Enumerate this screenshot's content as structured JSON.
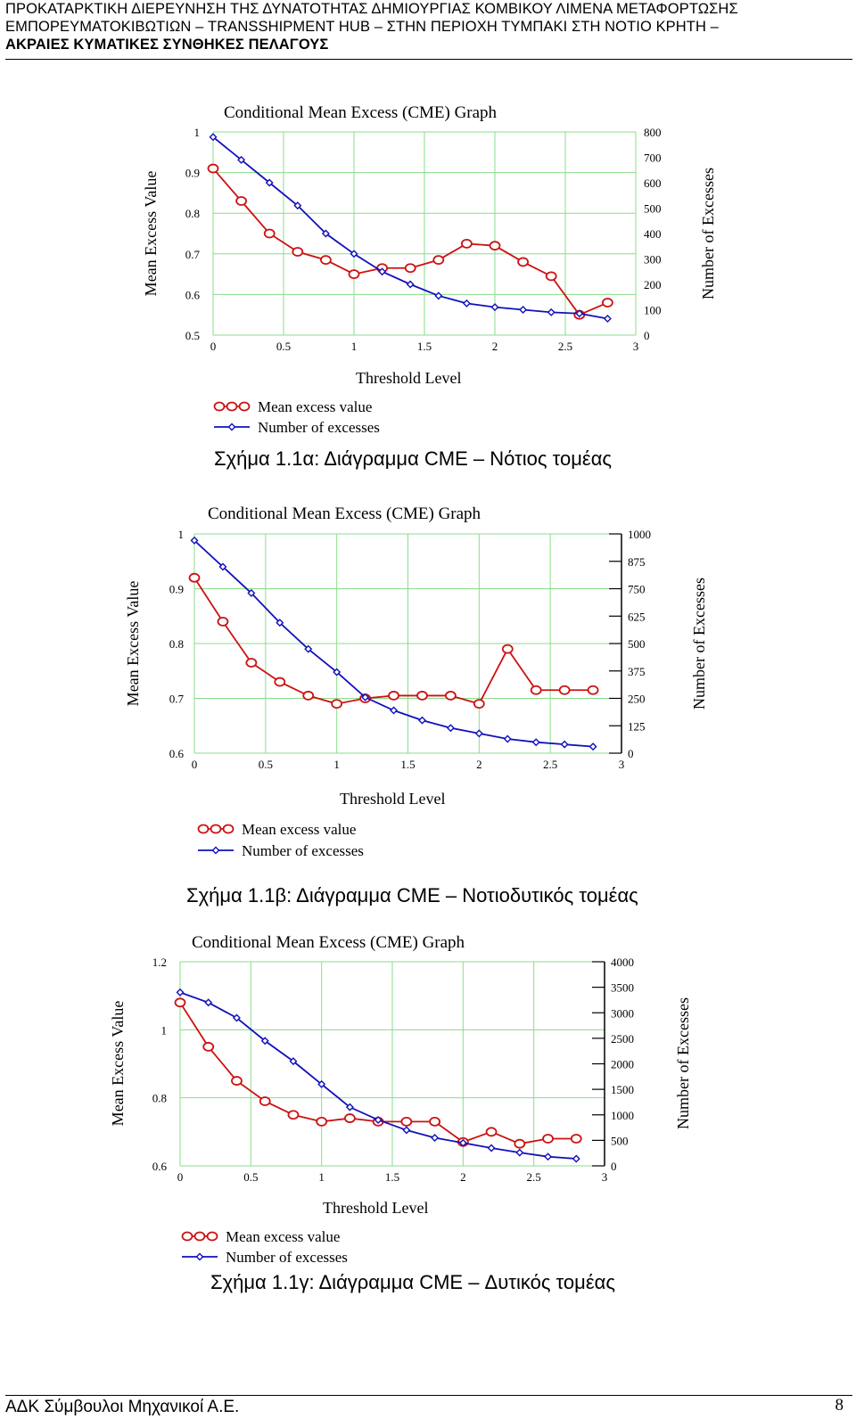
{
  "header": {
    "line1": "ΠΡΟΚΑΤΑΡΚΤΙΚΗ ΔΙΕΡΕΥΝΗΣΗ ΤΗΣ ΔΥΝΑΤΟΤΗΤΑΣ ΔΗΜΙΟΥΡΓΙΑΣ ΚΟΜΒΙΚΟΥ ΛΙΜΕΝΑ ΜΕΤΑΦΟΡΤΩΣΗΣ",
    "line2": "ΕΜΠΟΡΕΥΜΑΤΟΚΙΒΩΤΙΩΝ – TRANSSHIPMENT HUB – ΣΤΗΝ ΠΕΡΙΟΧΗ ΤΥΜΠΑΚΙ ΣΤΗ ΝΟΤΙΟ ΚΡΗΤΗ –",
    "line3": "ΑΚΡΑΙΕΣ ΚΥΜΑΤΙΚΕΣ ΣΥΝΘΗΚΕΣ ΠΕΛΑΓΟΥΣ"
  },
  "captions": [
    "Σχήμα 1.1α: Διάγραμμα CME – Νότιος τομέας",
    "Σχήμα 1.1β: Διάγραμμα CME – Νοτιοδυτικός τομέας",
    "Σχήμα 1.1γ: Διάγραμμα CME – Δυτικός τομέας"
  ],
  "footer": {
    "left": "ΑΔΚ Σύμβουλοι Μηχανικοί Α.Ε.",
    "page": "8"
  },
  "colors": {
    "mean_excess": "#cc1111",
    "num_excesses": "#1111bb",
    "grid": "#88dd88"
  },
  "chart_data": [
    {
      "type": "line",
      "title": "Conditional Mean Excess (CME) Graph",
      "xlabel": "Threshold Level",
      "ylabel": "Mean Excess Value",
      "y2label": "Number of Excesses",
      "xlim": [
        0,
        3
      ],
      "ylim": [
        0.5,
        1
      ],
      "y2lim": [
        0,
        800
      ],
      "xticks": [
        "0",
        "0.5",
        "1",
        "1.5",
        "2",
        "2.5",
        "3"
      ],
      "yticks": [
        "0.5",
        "0.6",
        "0.7",
        "0.8",
        "0.9",
        "1"
      ],
      "y2ticks": [
        "0",
        "100",
        "200",
        "300",
        "400",
        "500",
        "600",
        "700",
        "800"
      ],
      "grid": true,
      "legend_position": "bottom-left",
      "series": [
        {
          "name": "Mean excess value",
          "axis": "left",
          "marker": "circle",
          "x": [
            0,
            0.2,
            0.4,
            0.6,
            0.8,
            1.0,
            1.2,
            1.4,
            1.6,
            1.8,
            2.0,
            2.2,
            2.4,
            2.6,
            2.8
          ],
          "y": [
            0.91,
            0.83,
            0.75,
            0.705,
            0.685,
            0.65,
            0.665,
            0.665,
            0.685,
            0.725,
            0.72,
            0.68,
            0.645,
            0.55,
            0.58
          ]
        },
        {
          "name": "Number of excesses",
          "axis": "right",
          "marker": "diamond",
          "x": [
            0,
            0.2,
            0.4,
            0.6,
            0.8,
            1.0,
            1.2,
            1.4,
            1.6,
            1.8,
            2.0,
            2.2,
            2.4,
            2.6,
            2.8
          ],
          "y": [
            780,
            690,
            600,
            510,
            400,
            320,
            250,
            200,
            155,
            125,
            110,
            100,
            90,
            85,
            65
          ]
        }
      ]
    },
    {
      "type": "line",
      "title": "Conditional Mean Excess (CME) Graph",
      "xlabel": "Threshold Level",
      "ylabel": "Mean Excess Value",
      "y2label": "Number of Excesses",
      "xlim": [
        0,
        3
      ],
      "ylim": [
        0.6,
        1
      ],
      "y2lim": [
        0,
        1000
      ],
      "xticks": [
        "0",
        "0.5",
        "1",
        "1.5",
        "2",
        "2.5",
        "3"
      ],
      "yticks": [
        "0.6",
        "0.7",
        "0.8",
        "0.9",
        "1"
      ],
      "y2ticks": [
        "0",
        "125",
        "250",
        "375",
        "500",
        "625",
        "750",
        "875",
        "1000"
      ],
      "grid": true,
      "legend_position": "bottom-left",
      "series": [
        {
          "name": "Mean excess value",
          "axis": "left",
          "marker": "circle",
          "x": [
            0,
            0.2,
            0.4,
            0.6,
            0.8,
            1.0,
            1.2,
            1.4,
            1.6,
            1.8,
            2.0,
            2.2,
            2.4,
            2.6,
            2.8
          ],
          "y": [
            0.92,
            0.84,
            0.765,
            0.73,
            0.705,
            0.69,
            0.7,
            0.705,
            0.705,
            0.705,
            0.69,
            0.79,
            0.715,
            0.715,
            0.715
          ]
        },
        {
          "name": "Number of excesses",
          "axis": "right",
          "marker": "diamond",
          "x": [
            0,
            0.2,
            0.4,
            0.6,
            0.8,
            1.0,
            1.2,
            1.4,
            1.6,
            1.8,
            2.0,
            2.2,
            2.4,
            2.6,
            2.8
          ],
          "y": [
            970,
            850,
            730,
            595,
            475,
            370,
            255,
            195,
            150,
            115,
            90,
            65,
            50,
            40,
            30
          ]
        }
      ]
    },
    {
      "type": "line",
      "title": "Conditional Mean Excess (CME) Graph",
      "xlabel": "Threshold Level",
      "ylabel": "Mean Excess Value",
      "y2label": "Number of Excesses",
      "xlim": [
        0,
        3
      ],
      "ylim": [
        0.6,
        1.2
      ],
      "y2lim": [
        0,
        4000
      ],
      "xticks": [
        "0",
        "0.5",
        "1",
        "1.5",
        "2",
        "2.5",
        "3"
      ],
      "yticks": [
        "0.6",
        "0.8",
        "1",
        "1.2"
      ],
      "y2ticks": [
        "0",
        "500",
        "1000",
        "1500",
        "2000",
        "2500",
        "3000",
        "3500",
        "4000"
      ],
      "grid": true,
      "legend_position": "bottom-left",
      "series": [
        {
          "name": "Mean excess value",
          "axis": "left",
          "marker": "circle",
          "x": [
            0,
            0.2,
            0.4,
            0.6,
            0.8,
            1.0,
            1.2,
            1.4,
            1.6,
            1.8,
            2.0,
            2.2,
            2.4,
            2.6,
            2.8
          ],
          "y": [
            1.08,
            0.95,
            0.85,
            0.79,
            0.75,
            0.73,
            0.74,
            0.73,
            0.73,
            0.73,
            0.67,
            0.7,
            0.665,
            0.68,
            0.68
          ]
        },
        {
          "name": "Number of excesses",
          "axis": "right",
          "marker": "diamond",
          "x": [
            0,
            0.2,
            0.4,
            0.6,
            0.8,
            1.0,
            1.2,
            1.4,
            1.6,
            1.8,
            2.0,
            2.2,
            2.4,
            2.6,
            2.8
          ],
          "y": [
            3400,
            3200,
            2900,
            2450,
            2050,
            1600,
            1150,
            900,
            700,
            550,
            450,
            350,
            260,
            180,
            140
          ]
        }
      ]
    }
  ]
}
